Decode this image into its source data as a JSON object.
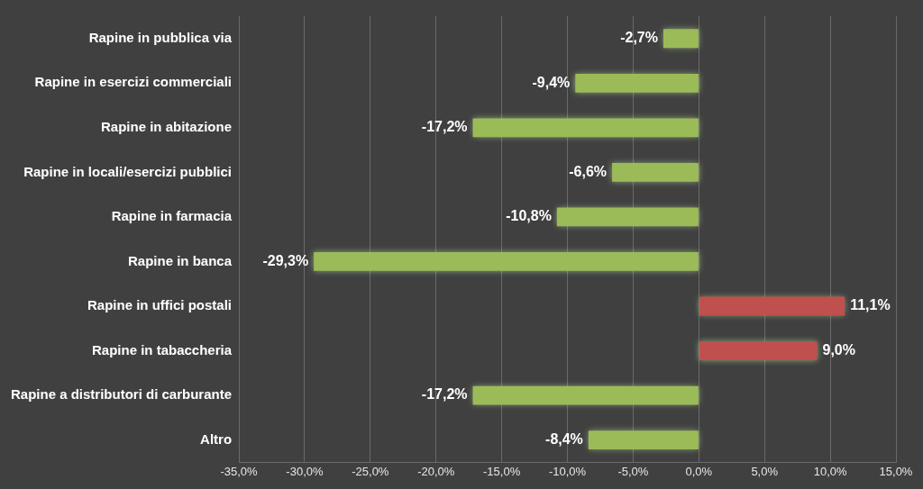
{
  "chart_data": {
    "type": "bar",
    "orientation": "horizontal",
    "categories": [
      "Rapine in pubblica via",
      "Rapine in esercizi commerciali",
      "Rapine in abitazione",
      "Rapine in locali/esercizi pubblici",
      "Rapine in farmacia",
      "Rapine in banca",
      "Rapine in uffici postali",
      "Rapine in tabaccheria",
      "Rapine a distributori di carburante",
      "Altro"
    ],
    "values": [
      -2.7,
      -9.4,
      -17.2,
      -6.6,
      -10.8,
      -29.3,
      11.1,
      9.0,
      -17.2,
      -8.4
    ],
    "value_labels": [
      "-2,7%",
      "-9,4%",
      "-17,2%",
      "-6,6%",
      "-10,8%",
      "-29,3%",
      "11,1%",
      "9,0%",
      "-17,2%",
      "-8,4%"
    ],
    "colors": [
      "#9bbb59",
      "#9bbb59",
      "#9bbb59",
      "#9bbb59",
      "#9bbb59",
      "#9bbb59",
      "#c0504d",
      "#c0504d",
      "#9bbb59",
      "#9bbb59"
    ],
    "xlim": [
      -35,
      15
    ],
    "xticks": [
      {
        "value": -35,
        "label": "-35,0%"
      },
      {
        "value": -30,
        "label": "-30,0%"
      },
      {
        "value": -25,
        "label": "-25,0%"
      },
      {
        "value": -20,
        "label": "-20,0%"
      },
      {
        "value": -15,
        "label": "-15,0%"
      },
      {
        "value": -10,
        "label": "-10,0%"
      },
      {
        "value": -5,
        "label": "-5,0%"
      },
      {
        "value": 0,
        "label": "0,0%"
      },
      {
        "value": 5,
        "label": "5,0%"
      },
      {
        "value": 10,
        "label": "10,0%"
      },
      {
        "value": 15,
        "label": "15,0%"
      }
    ],
    "grid": true,
    "data_labels": true
  }
}
